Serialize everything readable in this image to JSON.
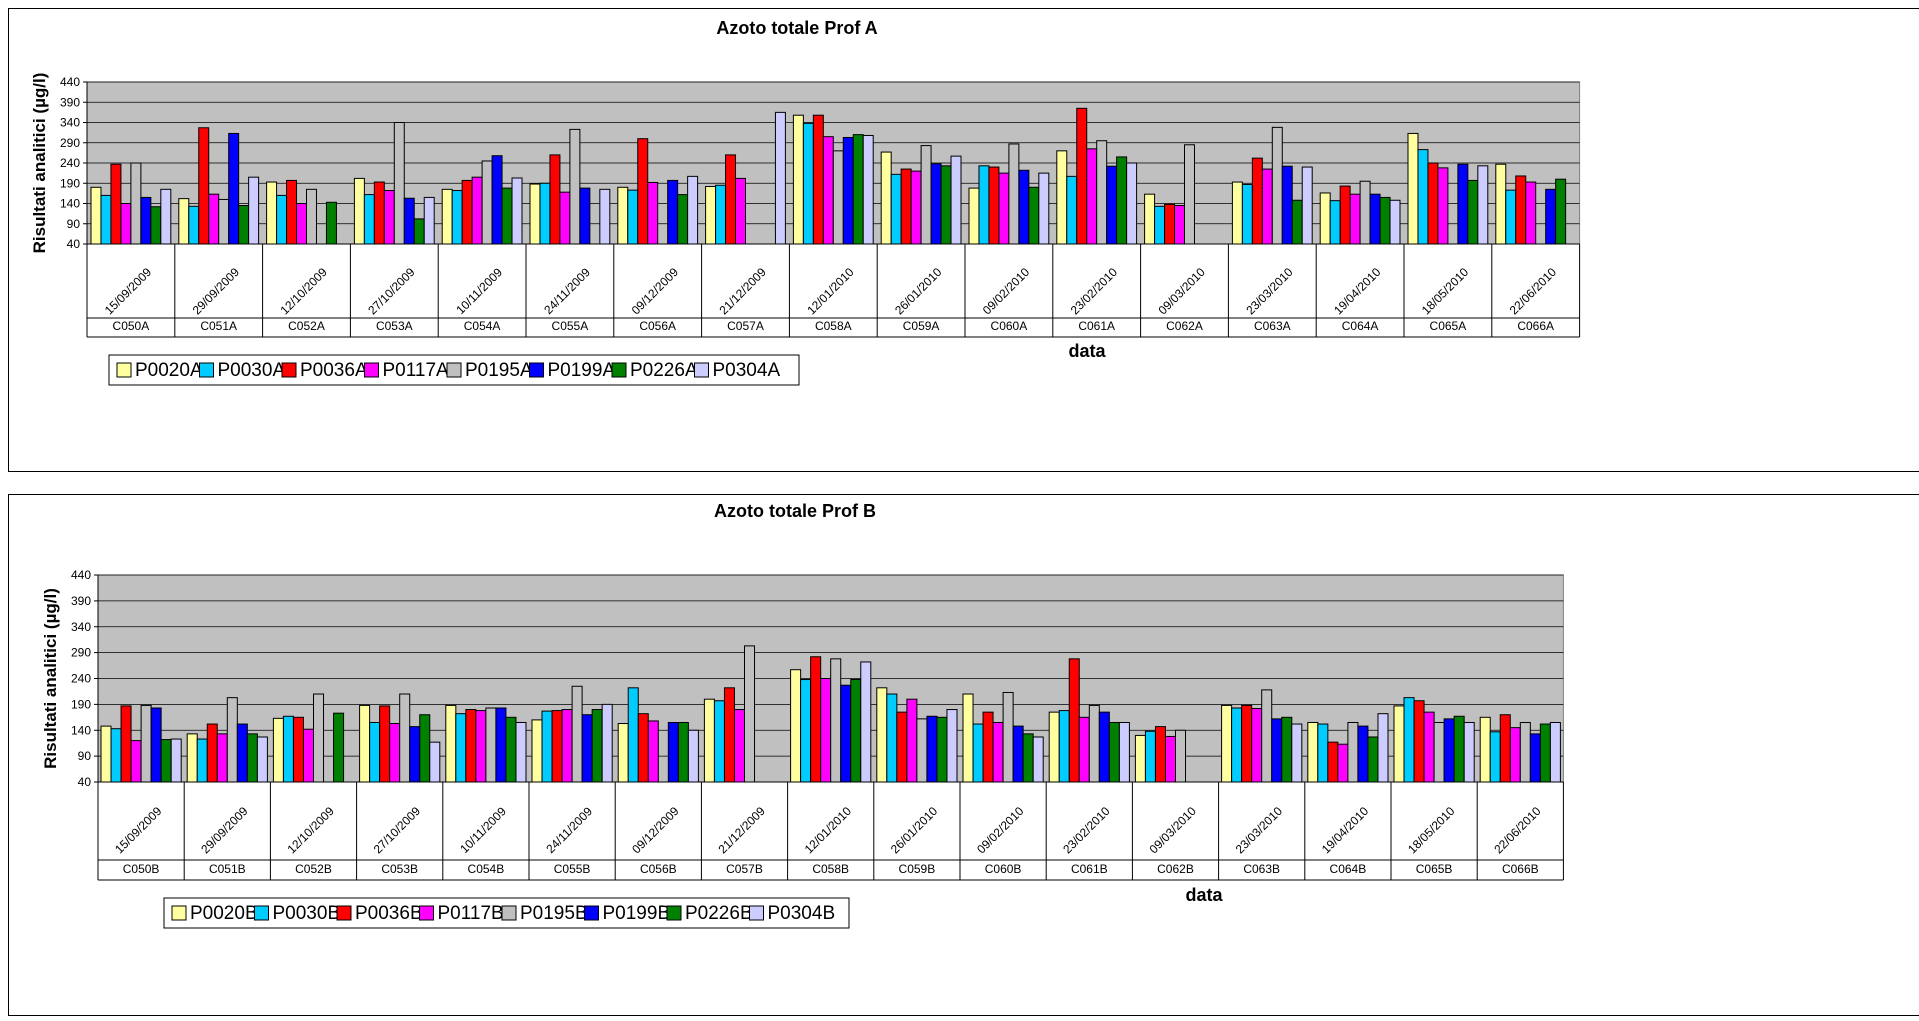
{
  "chart_data": [
    {
      "type": "bar",
      "title": "Azoto totale Prof A",
      "ylabel": "Risultati analitici (µg/l)",
      "xlabel": "data",
      "ylim": [
        40,
        440
      ],
      "yticks": [
        40,
        90,
        140,
        190,
        240,
        290,
        340,
        390,
        440
      ],
      "grid": true,
      "legend_position": "bottom-left",
      "categories": [
        "15/09/2009",
        "29/09/2009",
        "12/10/2009",
        "27/10/2009",
        "10/11/2009",
        "24/11/2009",
        "09/12/2009",
        "21/12/2009",
        "12/01/2010",
        "26/01/2010",
        "09/02/2010",
        "23/02/2010",
        "09/03/2010",
        "23/03/2010",
        "19/04/2010",
        "18/05/2010",
        "22/06/2010"
      ],
      "codes": [
        "C050A",
        "C051A",
        "C052A",
        "C053A",
        "C054A",
        "C055A",
        "C056A",
        "C057A",
        "C058A",
        "C059A",
        "C060A",
        "C061A",
        "C062A",
        "C063A",
        "C064A",
        "C065A",
        "C066A"
      ],
      "series": [
        {
          "name": "P0020A",
          "color": "#ffffa0",
          "values": [
            180,
            152,
            193,
            202,
            175,
            188,
            180,
            182,
            358,
            267,
            178,
            270,
            163,
            193,
            166,
            313,
            237
          ]
        },
        {
          "name": "P0030A",
          "color": "#00ccff",
          "values": [
            160,
            133,
            160,
            162,
            172,
            190,
            173,
            185,
            338,
            212,
            233,
            207,
            133,
            187,
            147,
            273,
            173
          ]
        },
        {
          "name": "P0036A",
          "color": "#ff0000",
          "values": [
            237,
            327,
            197,
            193,
            197,
            260,
            300,
            260,
            358,
            225,
            230,
            375,
            138,
            252,
            183,
            240,
            208
          ]
        },
        {
          "name": "P0117A",
          "color": "#ff00ff",
          "values": [
            140,
            163,
            140,
            172,
            205,
            168,
            192,
            202,
            305,
            220,
            215,
            275,
            135,
            225,
            163,
            228,
            193
          ]
        },
        {
          "name": "P0195A",
          "color": "#c0c0c0",
          "values": [
            240,
            150,
            175,
            340,
            245,
            323,
            null,
            null,
            270,
            283,
            287,
            295,
            285,
            328,
            195,
            null,
            null
          ]
        },
        {
          "name": "P0199A",
          "color": "#0000ff",
          "values": [
            155,
            313,
            null,
            153,
            258,
            178,
            197,
            null,
            303,
            238,
            222,
            232,
            null,
            232,
            163,
            237,
            175
          ]
        },
        {
          "name": "P0226A",
          "color": "#008000",
          "values": [
            132,
            135,
            143,
            102,
            178,
            null,
            162,
            null,
            310,
            233,
            180,
            255,
            null,
            148,
            155,
            197,
            200
          ]
        },
        {
          "name": "P0304A",
          "color": "#ccccff",
          "values": [
            175,
            205,
            null,
            155,
            203,
            175,
            207,
            365,
            308,
            257,
            215,
            240,
            null,
            230,
            148,
            233,
            null
          ]
        }
      ]
    },
    {
      "type": "bar",
      "title": "Azoto totale Prof B",
      "ylabel": "Risultati analitici (µg/l)",
      "xlabel": "data",
      "ylim": [
        40,
        440
      ],
      "yticks": [
        40,
        90,
        140,
        190,
        240,
        290,
        340,
        390,
        440
      ],
      "grid": true,
      "legend_position": "bottom-left",
      "categories": [
        "15/09/2009",
        "29/09/2009",
        "12/10/2009",
        "27/10/2009",
        "10/11/2009",
        "24/11/2009",
        "09/12/2009",
        "21/12/2009",
        "12/01/2010",
        "26/01/2010",
        "09/02/2010",
        "23/02/2010",
        "09/03/2010",
        "23/03/2010",
        "19/04/2010",
        "18/05/2010",
        "22/06/2010"
      ],
      "codes": [
        "C050B",
        "C051B",
        "C052B",
        "C053B",
        "C054B",
        "C055B",
        "C056B",
        "C057B",
        "C058B",
        "C059B",
        "C060B",
        "C061B",
        "C062B",
        "C063B",
        "C064B",
        "C065B",
        "C066B"
      ],
      "series": [
        {
          "name": "P0020B",
          "color": "#ffffa0",
          "values": [
            148,
            133,
            163,
            188,
            188,
            160,
            153,
            200,
            257,
            222,
            210,
            175,
            130,
            188,
            155,
            187,
            165
          ]
        },
        {
          "name": "P0030B",
          "color": "#00ccff",
          "values": [
            143,
            123,
            167,
            155,
            172,
            177,
            222,
            197,
            238,
            210,
            152,
            178,
            138,
            183,
            152,
            203,
            137
          ]
        },
        {
          "name": "P0036B",
          "color": "#ff0000",
          "values": [
            187,
            152,
            165,
            187,
            180,
            178,
            172,
            222,
            282,
            175,
            175,
            278,
            147,
            188,
            117,
            197,
            170
          ]
        },
        {
          "name": "P0117B",
          "color": "#ff00ff",
          "values": [
            120,
            133,
            142,
            153,
            178,
            180,
            158,
            180,
            240,
            200,
            155,
            165,
            128,
            182,
            113,
            175,
            145
          ]
        },
        {
          "name": "P0195B",
          "color": "#c0c0c0",
          "values": [
            188,
            203,
            210,
            210,
            183,
            225,
            null,
            303,
            278,
            162,
            213,
            188,
            140,
            218,
            155,
            155,
            155
          ]
        },
        {
          "name": "P0199B",
          "color": "#0000ff",
          "values": [
            183,
            152,
            null,
            147,
            183,
            170,
            155,
            null,
            227,
            167,
            148,
            175,
            null,
            162,
            148,
            162,
            133
          ]
        },
        {
          "name": "P0226B",
          "color": "#008000",
          "values": [
            122,
            133,
            173,
            170,
            165,
            180,
            155,
            null,
            238,
            165,
            133,
            155,
            null,
            165,
            127,
            167,
            152
          ]
        },
        {
          "name": "P0304B",
          "color": "#ccccff",
          "values": [
            123,
            127,
            null,
            117,
            155,
            190,
            140,
            null,
            272,
            180,
            127,
            155,
            null,
            152,
            172,
            155,
            155
          ]
        }
      ]
    }
  ]
}
